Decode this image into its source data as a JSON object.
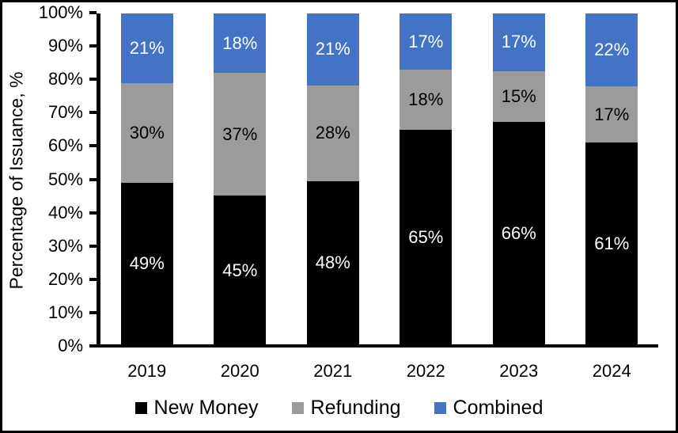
{
  "chart_data": {
    "type": "bar",
    "stacked": true,
    "title": "",
    "xlabel": "",
    "ylabel": "Percentage of Issuance, %",
    "categories": [
      "2019",
      "2020",
      "2021",
      "2022",
      "2023",
      "2024"
    ],
    "series": [
      {
        "name": "New Money",
        "color": "#000000",
        "label_color": "#ffffff",
        "values": [
          49,
          45,
          48,
          65,
          66,
          61
        ]
      },
      {
        "name": "Refunding",
        "color": "#9B9B9B",
        "label_color": "#000000",
        "values": [
          30,
          37,
          28,
          18,
          15,
          17
        ]
      },
      {
        "name": "Combined",
        "color": "#4472C4",
        "label_color": "#ffffff",
        "values": [
          21,
          18,
          21,
          17,
          17,
          22
        ]
      }
    ],
    "value_suffix": "%",
    "y_ticks": [
      "0%",
      "10%",
      "20%",
      "30%",
      "40%",
      "50%",
      "60%",
      "70%",
      "80%",
      "90%",
      "100%"
    ],
    "ylim": [
      0,
      100
    ],
    "grid": false,
    "legend_position": "bottom",
    "bar_labels_visible": true
  }
}
